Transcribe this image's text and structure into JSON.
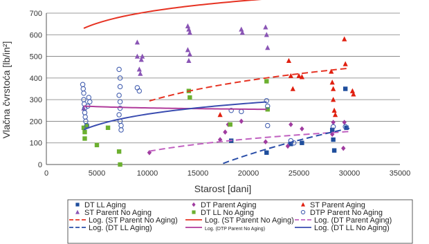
{
  "chart_data": {
    "type": "scatter",
    "title": "",
    "xlabel": "Starost [dani]",
    "ylabel": "Vlačna čvrstoća [lb/in²]",
    "xlim": [
      0,
      35000
    ],
    "ylim": [
      0,
      700
    ],
    "x_ticks": [
      "0",
      "5000",
      "10000",
      "15000",
      "20000",
      "25000",
      "30000",
      "35000"
    ],
    "y_ticks": [
      "0",
      "100",
      "200",
      "300",
      "400",
      "500",
      "600",
      "700"
    ],
    "grid": "horizontal",
    "legend_position": "bottom",
    "series": [
      {
        "name": "DT LL Aging",
        "marker": "square",
        "color": "#1f4e9c",
        "points": [
          [
            18300,
            110
          ],
          [
            21800,
            55
          ],
          [
            24200,
            95
          ],
          [
            25300,
            100
          ],
          [
            28300,
            160
          ],
          [
            28400,
            115
          ],
          [
            28500,
            65
          ],
          [
            29600,
            350
          ],
          [
            29700,
            170
          ]
        ]
      },
      {
        "name": "DT Parent Aging",
        "marker": "diamond",
        "color": "#a03ca0",
        "points": [
          [
            10200,
            55
          ],
          [
            17200,
            115
          ],
          [
            17700,
            150
          ],
          [
            18000,
            185
          ],
          [
            19300,
            200
          ],
          [
            21700,
            105
          ],
          [
            23900,
            85
          ],
          [
            24200,
            185
          ],
          [
            25300,
            165
          ],
          [
            28300,
            140
          ],
          [
            28400,
            195
          ],
          [
            29400,
            75
          ],
          [
            29500,
            195
          ]
        ]
      },
      {
        "name": "ST Parent Aging",
        "marker": "triangle",
        "color": "#e02010",
        "points": [
          [
            17200,
            230
          ],
          [
            24000,
            480
          ],
          [
            24200,
            410
          ],
          [
            24400,
            350
          ],
          [
            25000,
            410
          ],
          [
            25300,
            405
          ],
          [
            28200,
            430
          ],
          [
            28300,
            380
          ],
          [
            28400,
            350
          ],
          [
            28400,
            300
          ],
          [
            28500,
            250
          ],
          [
            28600,
            230
          ],
          [
            29500,
            580
          ],
          [
            29600,
            465
          ],
          [
            30300,
            340
          ],
          [
            30400,
            325
          ]
        ]
      },
      {
        "name": "ST Parent No Aging",
        "marker": "triangle",
        "color": "#8a55b5",
        "points": [
          [
            3700,
            260
          ],
          [
            9000,
            565
          ],
          [
            9000,
            500
          ],
          [
            9200,
            440
          ],
          [
            9300,
            420
          ],
          [
            9400,
            485
          ],
          [
            9500,
            500
          ],
          [
            14000,
            640
          ],
          [
            14100,
            625
          ],
          [
            14200,
            610
          ],
          [
            14000,
            530
          ],
          [
            14200,
            510
          ],
          [
            14100,
            480
          ],
          [
            19300,
            625
          ],
          [
            19400,
            610
          ],
          [
            21700,
            635
          ],
          [
            21800,
            600
          ],
          [
            21900,
            540
          ]
        ]
      },
      {
        "name": "DT LL No Aging",
        "marker": "square",
        "color": "#6cb030",
        "points": [
          [
            3700,
            170
          ],
          [
            3800,
            150
          ],
          [
            3800,
            120
          ],
          [
            4000,
            180
          ],
          [
            5000,
            90
          ],
          [
            6100,
            170
          ],
          [
            7200,
            60
          ],
          [
            7300,
            0
          ],
          [
            14100,
            340
          ],
          [
            14200,
            310
          ],
          [
            18200,
            185
          ],
          [
            21800,
            385
          ],
          [
            21900,
            255
          ]
        ]
      },
      {
        "name": "DTP Parent No Aging",
        "marker": "circle",
        "color": "#4560b0",
        "points": [
          [
            3600,
            370
          ],
          [
            3650,
            350
          ],
          [
            3700,
            330
          ],
          [
            3700,
            300
          ],
          [
            3750,
            280
          ],
          [
            3800,
            260
          ],
          [
            3800,
            240
          ],
          [
            3850,
            220
          ],
          [
            3900,
            200
          ],
          [
            4000,
            180
          ],
          [
            4100,
            270
          ],
          [
            4200,
            310
          ],
          [
            4300,
            290
          ],
          [
            7200,
            440
          ],
          [
            7300,
            400
          ],
          [
            7300,
            360
          ],
          [
            7200,
            320
          ],
          [
            7300,
            290
          ],
          [
            7300,
            260
          ],
          [
            7200,
            230
          ],
          [
            7300,
            200
          ],
          [
            7400,
            180
          ],
          [
            7400,
            160
          ],
          [
            9000,
            355
          ],
          [
            9200,
            340
          ],
          [
            18300,
            250
          ],
          [
            19300,
            245
          ],
          [
            21800,
            295
          ],
          [
            21900,
            270
          ],
          [
            21900,
            180
          ],
          [
            24200,
            110
          ],
          [
            24500,
            100
          ],
          [
            28400,
            175
          ],
          [
            29600,
            175
          ]
        ]
      }
    ],
    "trendlines": [
      {
        "name": "Log. (ST Parent No Aging)",
        "color": "#e63222",
        "style": "solid",
        "domain": [
          3700,
          21800
        ],
        "a": 76.6,
        "b": 0.4
      },
      {
        "name": "Log. (ST Parent No Aging)",
        "color": "#e63222",
        "style": "dash",
        "domain": [
          10200,
          30000
        ],
        "a": 140.4,
        "b": -1002.1
      },
      {
        "name": "Log. (DT Parent Aging)",
        "color": "#c060c0",
        "style": "dash",
        "domain": [
          10200,
          30000
        ],
        "a": 84.4,
        "b": -717.5
      },
      {
        "name": "Log. (DT LL Aging)",
        "color": "#2a4ea8",
        "style": "dash",
        "domain": [
          17500,
          30000
        ],
        "a": 301.1,
        "b": -2936.7
      },
      {
        "name": "Log. (DTP Parent No Aging)",
        "color": "#b03a9a",
        "style": "solid",
        "domain": [
          3700,
          21800
        ],
        "a": -8.5,
        "b": 340.0
      },
      {
        "name": "Log. (DT LL No Aging)",
        "color": "#3a4cb0",
        "style": "solid",
        "domain": [
          3700,
          21800
        ],
        "a": 72.4,
        "b": -433.9
      }
    ],
    "legend": [
      {
        "label": "DT LL Aging",
        "kind": "marker",
        "marker": "square",
        "color": "#1f4e9c"
      },
      {
        "label": "DT Parent Aging",
        "kind": "marker",
        "marker": "diamond",
        "color": "#a03ca0"
      },
      {
        "label": "ST Parent Aging",
        "kind": "marker",
        "marker": "triangle",
        "color": "#e02010"
      },
      {
        "label": "ST Parent No Aging",
        "kind": "marker",
        "marker": "triangle",
        "color": "#8a55b5"
      },
      {
        "label": "DT LL No Aging",
        "kind": "marker",
        "marker": "square",
        "color": "#6cb030"
      },
      {
        "label": "DTP Parent No Aging",
        "kind": "marker",
        "marker": "circle",
        "color": "#4560b0"
      },
      {
        "label": "Log. (ST Parent No Aging)",
        "kind": "line",
        "style": "dash",
        "color": "#e63222"
      },
      {
        "label": "Log. (ST Parent No Aging)",
        "kind": "line",
        "style": "solid",
        "color": "#e63222"
      },
      {
        "label": "Log. (DT Parent Aging)",
        "kind": "line",
        "style": "dash",
        "color": "#c060c0"
      },
      {
        "label": "Log. (DT LL Aging)",
        "kind": "line",
        "style": "dash",
        "color": "#2a4ea8"
      },
      {
        "label": "Log. (DTP Parent No Aging)",
        "kind": "line",
        "style": "solid",
        "color": "#b03a9a",
        "small": true
      },
      {
        "label": "Log. (DT LL No Aging)",
        "kind": "line",
        "style": "solid",
        "color": "#3a4cb0"
      }
    ]
  }
}
